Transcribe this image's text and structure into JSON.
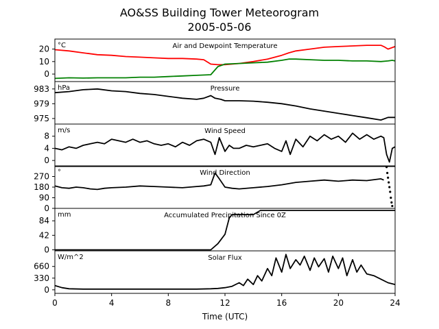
{
  "chart_data": {
    "type": "line",
    "title": "AO&SS Building Tower Meteorogram",
    "subtitle": "2005-05-06",
    "xlabel": "Time (UTC)",
    "xlim": [
      0,
      24
    ],
    "xticks": [
      0,
      4,
      8,
      12,
      16,
      20,
      24
    ],
    "panels": [
      {
        "title": "Air and Dewpoint Temperature",
        "unit": "°C",
        "ylim": [
          -6,
          28
        ],
        "yticks": [
          0,
          10,
          20
        ],
        "series": [
          {
            "color": "#ff0000",
            "x": [
              0,
              1,
              2,
              3,
              4,
              5,
              6,
              7,
              8,
              9,
              10,
              10.5,
              11,
              11.5,
              12,
              12.5,
              13,
              14,
              15,
              16,
              16.5,
              17,
              18,
              19,
              20,
              21,
              22,
              23,
              23.2,
              23.5,
              24
            ],
            "y": [
              19.5,
              18.5,
              17,
              15.5,
              15,
              14,
              13.5,
              13,
              12.5,
              12.5,
              12,
              11.5,
              8,
              7.5,
              7.5,
              8,
              8.5,
              10,
              12,
              15,
              17,
              18.5,
              20,
              21.5,
              22,
              22.5,
              23,
              23,
              22,
              20,
              22
            ]
          },
          {
            "color": "#008000",
            "x": [
              0,
              1,
              2,
              3,
              4,
              5,
              6,
              7,
              8,
              9,
              10,
              11,
              11.5,
              12,
              13,
              14,
              15,
              16,
              16.5,
              17,
              18,
              19,
              20,
              21,
              22,
              23,
              23.5,
              23.8,
              24
            ],
            "y": [
              -3.5,
              -3,
              -3.2,
              -3,
              -3,
              -3,
              -2.5,
              -2.5,
              -2,
              -1.5,
              -1,
              -0.5,
              6,
              8,
              8.5,
              9,
              9.5,
              11,
              12,
              12,
              11.5,
              11,
              11,
              10.5,
              10.5,
              10,
              10.5,
              11,
              10.5
            ]
          }
        ]
      },
      {
        "title": "Pressure",
        "unit": "hPa",
        "ylim": [
          973.5,
          985
        ],
        "yticks": [
          975,
          979,
          983
        ],
        "series": [
          {
            "color": "#000000",
            "x": [
              0,
              1,
              2,
              3,
              4,
              5,
              6,
              7,
              8,
              9,
              10,
              10.5,
              11,
              11.3,
              11.7,
              12,
              13,
              14,
              15,
              16,
              17,
              18,
              19,
              20,
              21,
              22,
              23,
              23.5,
              24
            ],
            "y": [
              982,
              982.3,
              982.8,
              983,
              982.5,
              982.3,
              981.8,
              981.5,
              981,
              980.5,
              980.2,
              980.5,
              981.2,
              980.5,
              980.2,
              979.8,
              979.8,
              979.7,
              979.4,
              979,
              978.4,
              977.6,
              977,
              976.4,
              975.8,
              975.2,
              974.6,
              975.3,
              975.3
            ]
          }
        ]
      },
      {
        "title": "Wind Speed",
        "unit": "m/s",
        "ylim": [
          -2,
          12
        ],
        "yticks": [
          0,
          4,
          8
        ],
        "series": [
          {
            "color": "#000000",
            "x": [
              0,
              0.5,
              1,
              1.5,
              2,
              2.5,
              3,
              3.5,
              4,
              4.5,
              5,
              5.5,
              6,
              6.5,
              7,
              7.5,
              8,
              8.5,
              9,
              9.5,
              10,
              10.5,
              11,
              11.3,
              11.6,
              12,
              12.3,
              12.6,
              13,
              13.5,
              14,
              14.5,
              15,
              15.5,
              16,
              16.3,
              16.6,
              17,
              17.5,
              18,
              18.5,
              19,
              19.5,
              20,
              20.5,
              21,
              21.5,
              22,
              22.5,
              23,
              23.2,
              23.4,
              23.6,
              23.8,
              24
            ],
            "y": [
              4,
              3.5,
              4.5,
              4,
              5,
              5.5,
              6,
              5.5,
              7,
              6.5,
              6,
              7,
              6,
              6.5,
              5.5,
              5,
              5.5,
              4.5,
              6,
              5,
              6.5,
              7,
              6,
              2,
              7.5,
              3,
              5,
              4,
              4,
              5,
              4.5,
              5,
              5.5,
              4,
              3,
              6.5,
              2,
              7,
              4.5,
              8,
              6.5,
              8.5,
              7,
              8,
              6,
              9,
              7,
              8.5,
              7,
              8,
              7.5,
              2,
              -0.5,
              4,
              4.5
            ]
          }
        ]
      },
      {
        "title": "Wind Direction",
        "unit": "°",
        "ylim": [
          0,
          360
        ],
        "yticks": [
          0,
          90,
          180,
          270
        ],
        "series": [
          {
            "color": "#000000",
            "x": [
              0,
              0.5,
              1,
              1.5,
              2,
              2.5,
              3,
              3.5,
              4,
              5,
              6,
              7,
              8,
              9,
              10,
              10.5,
              11,
              11.3,
              11.6,
              12,
              12.5,
              13,
              14,
              15,
              16,
              17,
              18,
              19,
              20,
              21,
              22,
              23,
              23.2
            ],
            "y": [
              190,
              175,
              170,
              180,
              175,
              165,
              160,
              170,
              175,
              180,
              190,
              185,
              180,
              175,
              185,
              190,
              200,
              300,
              250,
              180,
              170,
              165,
              175,
              185,
              200,
              220,
              230,
              240,
              230,
              240,
              235,
              250,
              240
            ]
          },
          {
            "color": "#000000",
            "marker": true,
            "x": [
              23.4,
              23.45,
              23.5,
              23.55,
              23.6,
              23.65,
              23.7,
              23.75,
              23.8
            ],
            "y": [
              350,
              300,
              260,
              220,
              180,
              140,
              90,
              50,
              20
            ]
          }
        ]
      },
      {
        "title": "Accumulated Precipitation Since 0Z",
        "unit": "mm",
        "ylim": [
          -3,
          120
        ],
        "yticks": [
          0,
          42,
          84
        ],
        "series": [
          {
            "color": "#000000",
            "x": [
              0,
              10,
              11,
              11.5,
              12,
              12.3,
              12.5,
              13,
              14,
              14.5,
              15,
              24
            ],
            "y": [
              0,
              0,
              0,
              18,
              45,
              92,
              102,
              102,
              102,
              114,
              114,
              114
            ]
          }
        ]
      },
      {
        "title": "Solar Flux",
        "unit": "W/m^2",
        "ylim": [
          -100,
          1100
        ],
        "yticks": [
          0,
          330,
          660
        ],
        "series": [
          {
            "color": "#000000",
            "x": [
              0,
              0.5,
              1,
              2,
              4,
              6,
              8,
              10,
              11,
              11.5,
              12,
              12.5,
              13,
              13.3,
              13.6,
              14,
              14.3,
              14.6,
              15,
              15.3,
              15.6,
              16,
              16.3,
              16.6,
              17,
              17.3,
              17.6,
              18,
              18.3,
              18.6,
              19,
              19.3,
              19.6,
              20,
              20.3,
              20.6,
              21,
              21.3,
              21.6,
              22,
              22.5,
              23,
              23.5,
              24
            ],
            "y": [
              120,
              60,
              30,
              20,
              20,
              20,
              20,
              20,
              30,
              40,
              60,
              100,
              200,
              120,
              300,
              150,
              400,
              250,
              600,
              400,
              900,
              500,
              1000,
              600,
              850,
              700,
              950,
              550,
              900,
              650,
              880,
              500,
              950,
              600,
              900,
              400,
              850,
              500,
              700,
              450,
              400,
              300,
              200,
              150
            ]
          }
        ]
      }
    ]
  }
}
